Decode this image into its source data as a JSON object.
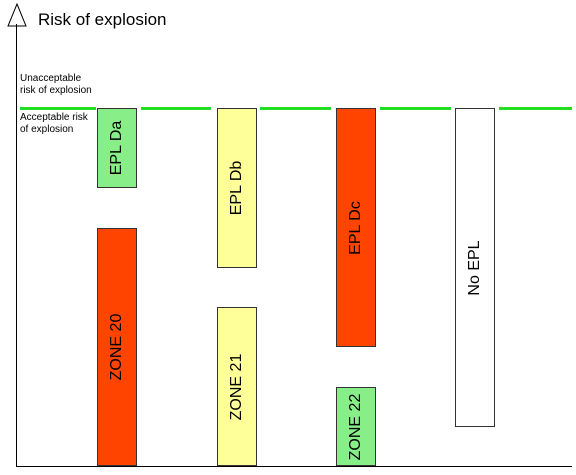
{
  "title": "Risk of explosion",
  "notes": {
    "unacceptable": [
      "Unacceptable",
      "risk of explosion"
    ],
    "acceptable": [
      "Acceptable risk",
      "of explosion"
    ]
  },
  "colors": {
    "threshold": "#22dd22",
    "green": "#88ee88",
    "yellow": "#ffff99",
    "red": "#ff4400",
    "white": "#ffffff"
  },
  "bars": [
    {
      "label": "EPL Da",
      "color": "#88ee88"
    },
    {
      "label": "ZONE 20",
      "color": "#ff4400"
    },
    {
      "label": "EPL Db",
      "color": "#ffff99"
    },
    {
      "label": "ZONE 21",
      "color": "#ffff99"
    },
    {
      "label": "EPL Dc",
      "color": "#ff4400"
    },
    {
      "label": "ZONE 22",
      "color": "#88ee88"
    },
    {
      "label": "No EPL",
      "color": "#ffffff"
    }
  ]
}
